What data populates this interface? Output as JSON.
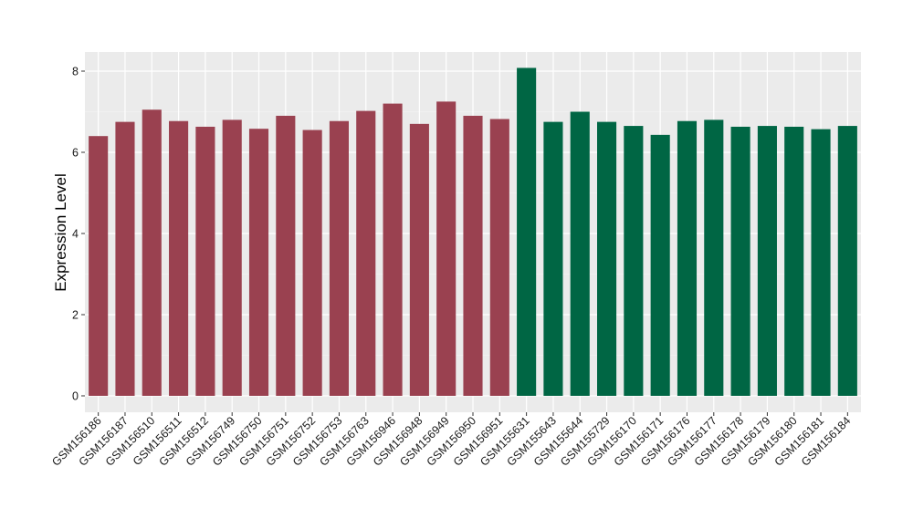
{
  "chart_data": {
    "type": "bar",
    "title": "",
    "xlabel": "",
    "ylabel": "Expression Level",
    "ylim": [
      0,
      8.35
    ],
    "yticks": [
      0,
      2,
      4,
      6,
      8
    ],
    "grid": true,
    "legend": "none",
    "colors": {
      "group1": "#9a4150",
      "group2": "#006644",
      "panel_bg": "#ebebeb",
      "grid": "#ffffff"
    },
    "categories": [
      "GSM156186",
      "GSM156187",
      "GSM156510",
      "GSM156511",
      "GSM156512",
      "GSM156749",
      "GSM156750",
      "GSM156751",
      "GSM156752",
      "GSM156753",
      "GSM156763",
      "GSM156946",
      "GSM156948",
      "GSM156949",
      "GSM156950",
      "GSM156951",
      "GSM155631",
      "GSM155643",
      "GSM155644",
      "GSM155729",
      "GSM156170",
      "GSM156171",
      "GSM156176",
      "GSM156177",
      "GSM156178",
      "GSM156179",
      "GSM156180",
      "GSM156181",
      "GSM156184"
    ],
    "values": [
      6.4,
      6.75,
      7.05,
      6.77,
      6.63,
      6.8,
      6.58,
      6.9,
      6.55,
      6.77,
      7.02,
      7.2,
      6.7,
      7.25,
      6.9,
      6.82,
      8.08,
      6.75,
      7.0,
      6.75,
      6.65,
      6.43,
      6.77,
      6.8,
      6.63,
      6.65,
      6.63,
      6.57,
      6.65
    ],
    "groups": [
      1,
      1,
      1,
      1,
      1,
      1,
      1,
      1,
      1,
      1,
      1,
      1,
      1,
      1,
      1,
      1,
      2,
      2,
      2,
      2,
      2,
      2,
      2,
      2,
      2,
      2,
      2,
      2,
      2
    ]
  }
}
